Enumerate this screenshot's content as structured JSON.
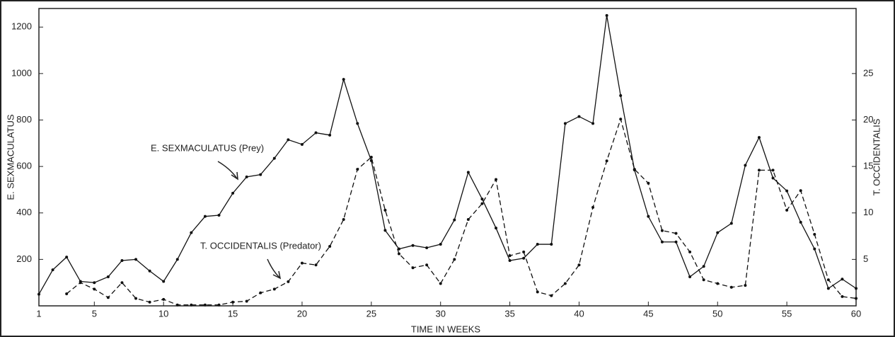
{
  "chart_data": {
    "type": "line",
    "xlabel": "TIME IN WEEKS",
    "ylabel": "E. SEXMACULATUS",
    "y2label": "T. OCCIDENTALIS",
    "annotations": [
      "E. SEXMACULATUS (Prey)",
      "T. OCCIDENTALIS (Predator)"
    ],
    "x": [
      1,
      2,
      3,
      4,
      5,
      6,
      7,
      8,
      9,
      10,
      11,
      12,
      13,
      14,
      15,
      16,
      17,
      18,
      19,
      20,
      21,
      22,
      23,
      24,
      25,
      26,
      27,
      28,
      29,
      30,
      31,
      32,
      33,
      34,
      35,
      36,
      37,
      38,
      39,
      40,
      41,
      42,
      43,
      44,
      45,
      46,
      47,
      48,
      49,
      50,
      51,
      52,
      53,
      54,
      55,
      56,
      57,
      58,
      59,
      60
    ],
    "series": [
      {
        "name": "E. SEXMACULATUS (Prey)",
        "color": "#111111",
        "dash": false,
        "values": [
          50,
          155,
          210,
          105,
          100,
          125,
          195,
          200,
          150,
          105,
          200,
          315,
          385,
          390,
          485,
          555,
          565,
          635,
          715,
          695,
          745,
          735,
          975,
          785,
          625,
          325,
          245,
          260,
          250,
          265,
          370,
          575,
          460,
          335,
          195,
          205,
          265,
          265,
          785,
          815,
          785,
          1250,
          905,
          585,
          385,
          275,
          275,
          125,
          170,
          315,
          355,
          605,
          725,
          550,
          495,
          360,
          245,
          75,
          115,
          75
        ]
      },
      {
        "name": "T. OCCIDENTALIS (Predator)",
        "color": "#111111",
        "dash": true,
        "axis": "y2",
        "values": [
          null,
          null,
          1.3,
          2.5,
          1.8,
          0.9,
          2.5,
          0.8,
          0.4,
          0.7,
          0.1,
          0.1,
          0.1,
          0.1,
          0.4,
          0.5,
          1.4,
          1.8,
          2.6,
          4.6,
          4.4,
          6.4,
          9.3,
          14.7,
          16.0,
          10.3,
          5.6,
          4.1,
          4.4,
          2.4,
          5.0,
          9.3,
          11.0,
          13.6,
          5.4,
          5.8,
          1.5,
          1.1,
          2.4,
          4.4,
          10.6,
          15.6,
          20.1,
          14.7,
          13.2,
          8.1,
          7.8,
          5.8,
          2.8,
          2.4,
          2.0,
          2.2,
          14.6,
          14.6,
          10.3,
          12.4,
          7.7,
          2.8,
          1.0,
          0.8
        ]
      }
    ],
    "xlim": [
      1,
      60
    ],
    "xticks": [
      1,
      5,
      10,
      15,
      20,
      25,
      30,
      35,
      40,
      45,
      50,
      55,
      60
    ],
    "ylim": [
      0,
      1280
    ],
    "yticks": [
      200,
      400,
      600,
      800,
      1000,
      1200
    ],
    "y2lim": [
      0,
      32
    ],
    "y2ticks": [
      5,
      10,
      15,
      20,
      25
    ],
    "grid": false
  }
}
